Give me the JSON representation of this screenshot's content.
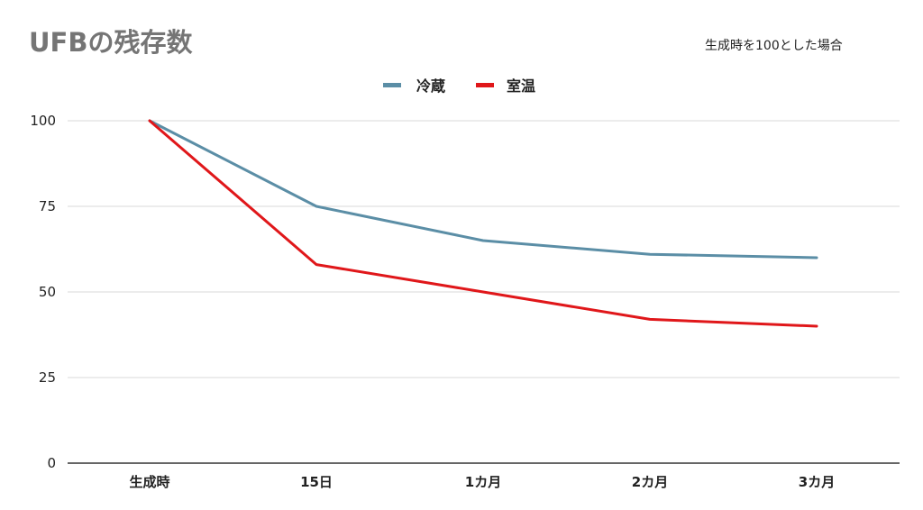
{
  "chart_data": {
    "type": "line",
    "title": "UFBの残存数",
    "subtitle": "生成時を100とした場合",
    "categories": [
      "生成時",
      "15日",
      "1カ月",
      "2カ月",
      "3カ月"
    ],
    "series": [
      {
        "name": "冷蔵",
        "color": "#5B8EA6",
        "values": [
          100,
          75,
          65,
          61,
          60
        ]
      },
      {
        "name": "室温",
        "color": "#E0171A",
        "values": [
          100,
          58,
          50,
          42,
          40
        ]
      }
    ],
    "yticks": [
      0,
      25,
      50,
      75,
      100
    ],
    "ylim": [
      0,
      100
    ],
    "grid": true,
    "legend": "top-center"
  }
}
